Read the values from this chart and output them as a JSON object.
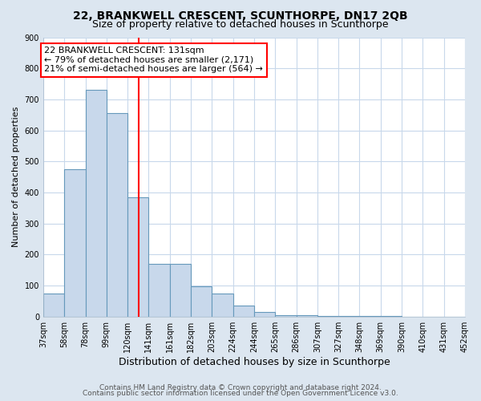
{
  "title": "22, BRANKWELL CRESCENT, SCUNTHORPE, DN17 2QB",
  "subtitle": "Size of property relative to detached houses in Scunthorpe",
  "xlabel": "Distribution of detached houses by size in Scunthorpe",
  "ylabel": "Number of detached properties",
  "bar_values": [
    75,
    475,
    730,
    655,
    385,
    170,
    170,
    97,
    75,
    35,
    15,
    5,
    5,
    3,
    3,
    2,
    1,
    0,
    0,
    0,
    5
  ],
  "tick_labels": [
    "37sqm",
    "58sqm",
    "78sqm",
    "99sqm",
    "120sqm",
    "141sqm",
    "161sqm",
    "182sqm",
    "203sqm",
    "224sqm",
    "244sqm",
    "265sqm",
    "286sqm",
    "307sqm",
    "327sqm",
    "348sqm",
    "369sqm",
    "390sqm",
    "410sqm",
    "431sqm",
    "452sqm"
  ],
  "bar_color": "#c8d8eb",
  "bar_edgecolor": "#6699bb",
  "vline_x": 5,
  "vline_color": "red",
  "annotation_text": "22 BRANKWELL CRESCENT: 131sqm\n← 79% of detached houses are smaller (2,171)\n21% of semi-detached houses are larger (564) →",
  "annotation_box_color": "white",
  "annotation_box_edgecolor": "red",
  "ylim": [
    0,
    900
  ],
  "yticks": [
    0,
    100,
    200,
    300,
    400,
    500,
    600,
    700,
    800,
    900
  ],
  "footer_line1": "Contains HM Land Registry data © Crown copyright and database right 2024.",
  "footer_line2": "Contains public sector information licensed under the Open Government Licence v3.0.",
  "background_color": "#dce6f0",
  "plot_background": "white",
  "title_fontsize": 10,
  "subtitle_fontsize": 9,
  "xlabel_fontsize": 9,
  "ylabel_fontsize": 8,
  "tick_fontsize": 7,
  "annotation_fontsize": 8,
  "footer_fontsize": 6.5
}
